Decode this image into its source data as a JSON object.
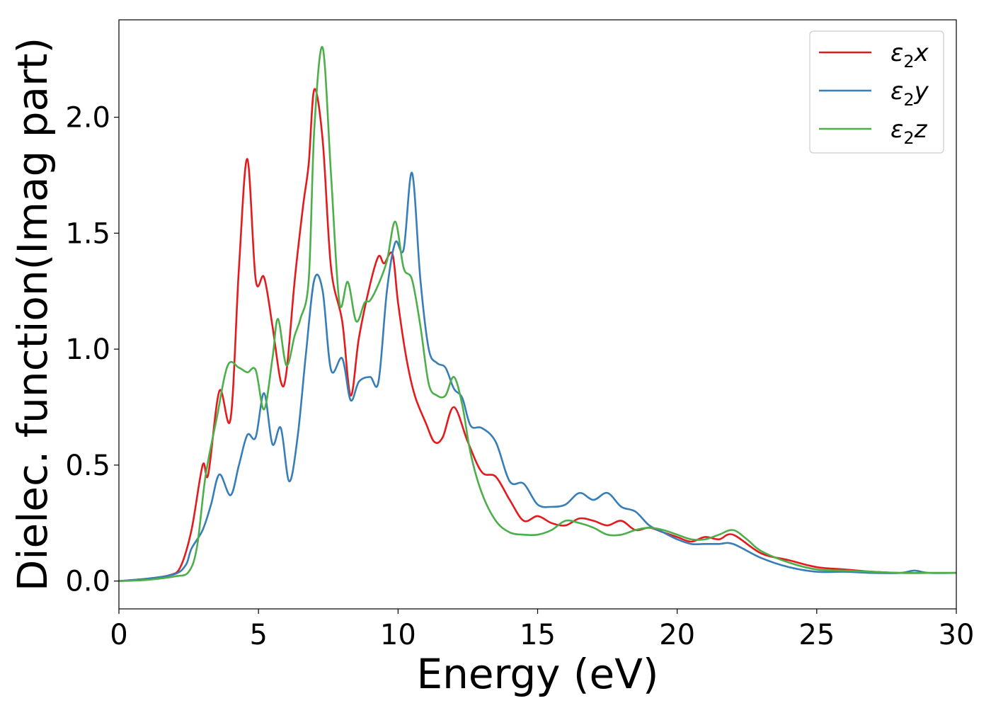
{
  "chart_data": {
    "type": "line",
    "xlabel": "Energy (eV)",
    "ylabel": "Dielec. function(Imag part)",
    "xlim": [
      0,
      30
    ],
    "ylim": [
      -0.12,
      2.42
    ],
    "xticks": [
      0,
      5,
      10,
      15,
      20,
      25,
      30
    ],
    "xtick_labels": [
      "0",
      "5",
      "10",
      "15",
      "20",
      "25",
      "30"
    ],
    "yticks": [
      0.0,
      0.5,
      1.0,
      1.5,
      2.0
    ],
    "ytick_labels": [
      "0.0",
      "0.5",
      "1.0",
      "1.5",
      "2.0"
    ],
    "grid": false,
    "legend_position": "top-right",
    "series": [
      {
        "name": "ε₂x",
        "legend_main": "ε",
        "legend_sub": "2",
        "legend_suffix": "x",
        "color": "#e41a1c",
        "x": [
          0,
          1,
          1.8,
          2.2,
          2.6,
          3.0,
          3.2,
          3.6,
          4.0,
          4.3,
          4.6,
          4.9,
          5.2,
          5.5,
          5.8,
          6.0,
          6.3,
          6.6,
          6.8,
          7.0,
          7.3,
          7.6,
          8.0,
          8.3,
          8.6,
          9.0,
          9.3,
          9.5,
          9.8,
          10.0,
          10.3,
          10.6,
          11.0,
          11.3,
          11.6,
          12.0,
          12.5,
          13.0,
          13.5,
          14.0,
          14.5,
          15.0,
          15.5,
          16.0,
          16.5,
          17.0,
          17.5,
          18.0,
          18.5,
          19.0,
          19.5,
          20.0,
          20.5,
          21.0,
          21.5,
          22.0,
          23.0,
          24.0,
          25.0,
          26.0,
          27.0,
          28.0,
          29.0,
          30.0
        ],
        "y": [
          0.0,
          0.01,
          0.025,
          0.06,
          0.22,
          0.5,
          0.46,
          0.82,
          0.7,
          1.35,
          1.82,
          1.3,
          1.31,
          1.1,
          0.86,
          0.9,
          1.3,
          1.62,
          1.8,
          2.12,
          1.9,
          1.35,
          1.12,
          0.8,
          1.05,
          1.28,
          1.4,
          1.37,
          1.41,
          1.2,
          0.96,
          0.8,
          0.68,
          0.6,
          0.62,
          0.75,
          0.6,
          0.47,
          0.45,
          0.35,
          0.26,
          0.28,
          0.25,
          0.24,
          0.27,
          0.26,
          0.24,
          0.26,
          0.22,
          0.23,
          0.21,
          0.19,
          0.17,
          0.19,
          0.18,
          0.2,
          0.12,
          0.09,
          0.06,
          0.05,
          0.04,
          0.035,
          0.035,
          0.035
        ]
      },
      {
        "name": "ε₂y",
        "legend_main": "ε",
        "legend_sub": "2",
        "legend_suffix": "y",
        "color": "#377eb8",
        "x": [
          0,
          1,
          2.0,
          2.4,
          2.6,
          3.0,
          3.3,
          3.6,
          4.0,
          4.3,
          4.6,
          4.9,
          5.2,
          5.5,
          5.8,
          6.1,
          6.4,
          6.7,
          7.0,
          7.3,
          7.6,
          8.0,
          8.3,
          8.6,
          9.0,
          9.3,
          9.6,
          9.9,
          10.2,
          10.5,
          10.8,
          11.1,
          11.4,
          11.7,
          12.0,
          12.3,
          12.6,
          13.0,
          13.5,
          14.0,
          14.5,
          15.0,
          15.5,
          16.0,
          16.5,
          17.0,
          17.5,
          18.0,
          18.5,
          19.0,
          19.5,
          20.0,
          20.5,
          21.0,
          21.5,
          22.0,
          23.0,
          24.0,
          25.0,
          26.0,
          27.0,
          28.0,
          28.5,
          29.0,
          30.0
        ],
        "y": [
          0.0,
          0.01,
          0.03,
          0.07,
          0.14,
          0.22,
          0.33,
          0.46,
          0.37,
          0.5,
          0.63,
          0.62,
          0.81,
          0.59,
          0.66,
          0.43,
          0.62,
          0.98,
          1.3,
          1.25,
          0.91,
          0.96,
          0.78,
          0.86,
          0.88,
          0.86,
          1.25,
          1.46,
          1.43,
          1.76,
          1.3,
          1.0,
          0.94,
          0.92,
          0.83,
          0.79,
          0.67,
          0.66,
          0.6,
          0.43,
          0.42,
          0.33,
          0.32,
          0.33,
          0.38,
          0.35,
          0.38,
          0.32,
          0.3,
          0.24,
          0.21,
          0.18,
          0.16,
          0.16,
          0.16,
          0.16,
          0.1,
          0.06,
          0.04,
          0.04,
          0.035,
          0.035,
          0.045,
          0.035,
          0.035
        ]
      },
      {
        "name": "ε₂z",
        "legend_main": "ε",
        "legend_sub": "2",
        "legend_suffix": "z",
        "color": "#4daf4a",
        "x": [
          0,
          1,
          2.0,
          2.5,
          2.8,
          3.1,
          3.5,
          3.9,
          4.3,
          4.6,
          4.9,
          5.2,
          5.5,
          5.7,
          6.0,
          6.3,
          6.5,
          6.8,
          7.0,
          7.3,
          7.6,
          7.9,
          8.2,
          8.5,
          8.8,
          9.0,
          9.3,
          9.6,
          9.9,
          10.2,
          10.5,
          10.8,
          11.1,
          11.4,
          11.7,
          12.0,
          12.3,
          12.6,
          13.0,
          13.5,
          14.0,
          14.5,
          15.0,
          15.5,
          16.0,
          16.5,
          17.0,
          17.5,
          18.0,
          18.5,
          19.0,
          19.5,
          20.0,
          20.5,
          21.0,
          21.5,
          22.0,
          22.5,
          23.0,
          24.0,
          25.0,
          26.0,
          27.0,
          28.0,
          29.0,
          30.0
        ],
        "y": [
          0.0,
          0.005,
          0.02,
          0.04,
          0.15,
          0.45,
          0.7,
          0.93,
          0.92,
          0.9,
          0.91,
          0.74,
          0.96,
          1.13,
          0.93,
          1.06,
          1.13,
          1.3,
          1.95,
          2.3,
          1.75,
          1.2,
          1.29,
          1.12,
          1.2,
          1.21,
          1.28,
          1.38,
          1.55,
          1.35,
          1.3,
          1.1,
          0.85,
          0.8,
          0.8,
          0.88,
          0.76,
          0.55,
          0.38,
          0.26,
          0.21,
          0.2,
          0.2,
          0.22,
          0.26,
          0.25,
          0.23,
          0.2,
          0.2,
          0.22,
          0.23,
          0.22,
          0.2,
          0.18,
          0.18,
          0.2,
          0.22,
          0.18,
          0.13,
          0.08,
          0.05,
          0.045,
          0.04,
          0.035,
          0.035,
          0.035
        ]
      }
    ]
  }
}
